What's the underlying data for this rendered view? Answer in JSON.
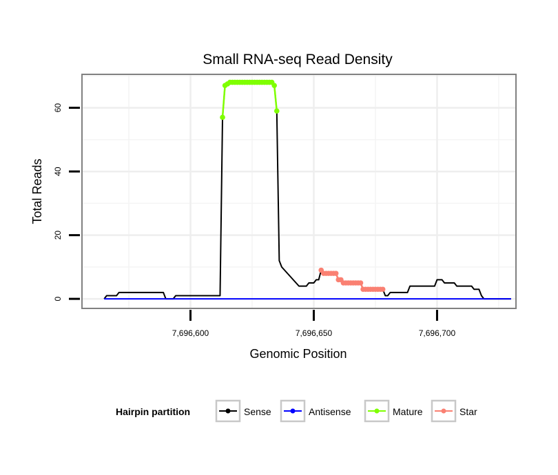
{
  "chart_data": {
    "type": "line",
    "title": "Small RNA-seq Read Density",
    "xlabel": "Genomic Position",
    "ylabel": "Total Reads",
    "xlim": [
      7696556,
      7696732
    ],
    "ylim": [
      -3,
      70.5
    ],
    "x_ticks": [
      7696600,
      7696650,
      7696700
    ],
    "x_tick_labels": [
      "7,696,600",
      "7,696,650",
      "7,696,700"
    ],
    "y_ticks": [
      0,
      20,
      40,
      60
    ],
    "y_tick_labels": [
      "0",
      "20",
      "40",
      "60"
    ],
    "grid": true,
    "legend_title": "Hairpin partition",
    "legend_position": "bottom",
    "series": [
      {
        "name": "Sense",
        "color": "#000000",
        "style": "line",
        "x": [
          7696565,
          7696566,
          7696570,
          7696571,
          7696589,
          7696590,
          7696593,
          7696594,
          7696612,
          7696613,
          7696614,
          7696615,
          7696633,
          7696634,
          7696635,
          7696636,
          7696637,
          7696644,
          7696645,
          7696647,
          7696648,
          7696650,
          7696651,
          7696652,
          7696653,
          7696654,
          7696659,
          7696660,
          7696661,
          7696662,
          7696669,
          7696670,
          7696678,
          7696679,
          7696680,
          7696681,
          7696688,
          7696689,
          7696696,
          7696697,
          7696699,
          7696700,
          7696702,
          7696703,
          7696707,
          7696708,
          7696714,
          7696715,
          7696717,
          7696718,
          7696719,
          7696730
        ],
        "y": [
          0,
          1,
          1,
          2,
          2,
          0,
          0,
          1,
          1,
          57,
          67,
          68,
          68,
          67,
          59,
          12,
          10,
          4,
          4,
          4,
          5,
          5,
          6,
          6,
          9,
          8,
          8,
          6,
          6,
          5,
          5,
          3,
          3,
          1,
          1,
          2,
          2,
          4,
          4,
          4,
          4,
          6,
          6,
          5,
          5,
          4,
          4,
          3,
          3,
          1,
          0,
          0
        ]
      },
      {
        "name": "Antisense",
        "color": "#0000ff",
        "style": "line",
        "x": [
          7696565,
          7696730
        ],
        "y": [
          0,
          0
        ]
      },
      {
        "name": "Mature",
        "color": "#7fff00",
        "style": "line+points",
        "x": [
          7696613,
          7696614,
          7696615,
          7696616,
          7696617,
          7696618,
          7696619,
          7696620,
          7696621,
          7696622,
          7696623,
          7696624,
          7696625,
          7696626,
          7696627,
          7696628,
          7696629,
          7696630,
          7696631,
          7696632,
          7696633,
          7696634,
          7696635
        ],
        "y": [
          57,
          67,
          67.5,
          68,
          68,
          68,
          68,
          68,
          68,
          68,
          68,
          68,
          68,
          68,
          68,
          68,
          68,
          68,
          68,
          68,
          68,
          67,
          59
        ]
      },
      {
        "name": "Star",
        "color": "#fa8072",
        "style": "line+points",
        "x": [
          7696653,
          7696654,
          7696655,
          7696656,
          7696657,
          7696658,
          7696659,
          7696660,
          7696661,
          7696662,
          7696663,
          7696664,
          7696665,
          7696666,
          7696667,
          7696668,
          7696669,
          7696670,
          7696671,
          7696672,
          7696673,
          7696674,
          7696675,
          7696676,
          7696677,
          7696678
        ],
        "y": [
          9,
          8,
          8,
          8,
          8,
          8,
          8,
          6,
          6,
          5,
          5,
          5,
          5,
          5,
          5,
          5,
          5,
          3,
          3,
          3,
          3,
          3,
          3,
          3,
          3,
          3
        ]
      }
    ]
  }
}
